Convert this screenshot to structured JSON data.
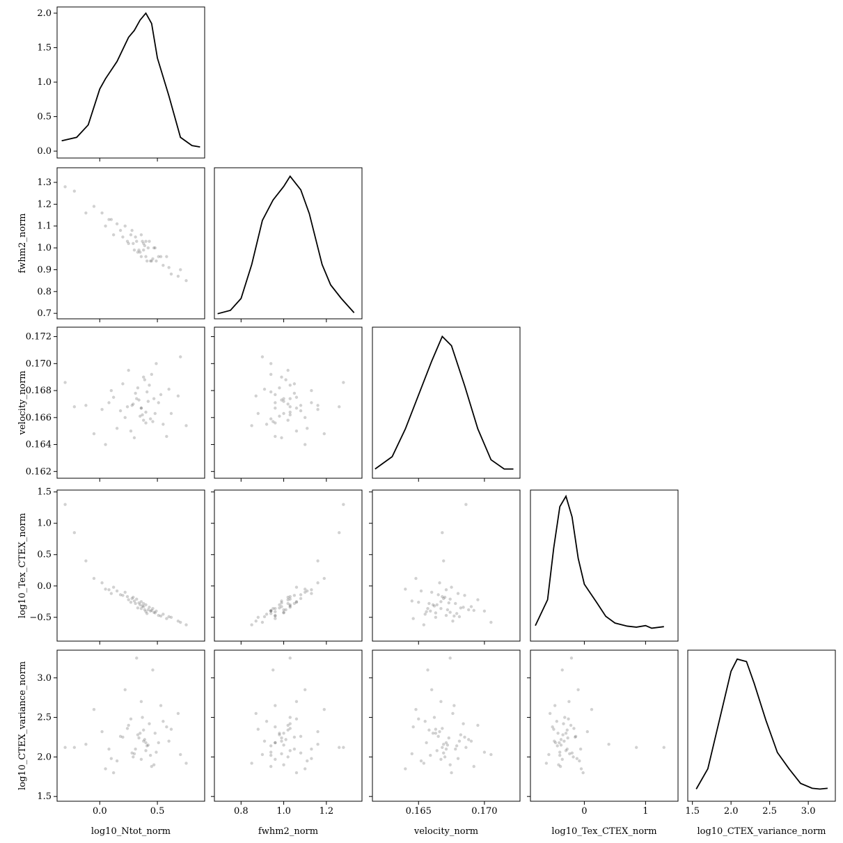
{
  "chart_data": {
    "type": "corner",
    "variables": [
      {
        "name": "log10_Ntot_norm",
        "lim": [
          -0.37,
          0.91
        ],
        "xticks": [
          {
            "value": 0,
            "label": "0.0"
          },
          0.5
        ],
        "samples": [
          0.42,
          0.35,
          0.1,
          0.55,
          0.28,
          0.38,
          -0.05,
          0.47,
          0.62,
          0.31,
          0.2,
          0.44,
          0.36,
          0.05,
          0.51,
          0.25,
          0.4,
          0.68,
          0.15,
          0.33,
          -0.22,
          0.46,
          0.39,
          0.29,
          0.58,
          0.12,
          0.37,
          0.41,
          0.02,
          0.49,
          0.22,
          0.34,
          0.75,
          0.43,
          -0.12,
          0.3,
          0.53,
          0.18,
          0.45,
          0.38,
          0.08,
          0.6,
          0.27,
          0.36,
          0.48,
          -0.3,
          0.32,
          0.4,
          0.7,
          0.24
        ],
        "density_x": [
          -0.33,
          -0.2,
          -0.1,
          0.0,
          0.05,
          0.15,
          0.25,
          0.3,
          0.35,
          0.4,
          0.45,
          0.5,
          0.6,
          0.7,
          0.8,
          0.87
        ],
        "density": [
          0.15,
          0.2,
          0.38,
          0.9,
          1.05,
          1.3,
          1.65,
          1.75,
          1.9,
          2.0,
          1.85,
          1.35,
          0.8,
          0.2,
          0.08,
          0.06
        ],
        "density_ylim": [
          -0.1,
          2.09
        ],
        "density_yticks": [
          {
            "value": 0,
            "label": "0.0"
          },
          0.5,
          {
            "value": 1,
            "label": "1.0"
          },
          1.5,
          {
            "value": 2,
            "label": "2.0"
          }
        ]
      },
      {
        "name": "fwhm2_norm",
        "lim": [
          0.675,
          1.367
        ],
        "xticks": [
          0.8,
          {
            "value": 1,
            "label": "1.0"
          },
          1.2
        ],
        "yticks": [
          0.7,
          0.8,
          0.9,
          {
            "value": 1,
            "label": "1.0"
          },
          1.1,
          1.2,
          1.3
        ],
        "samples": [
          1.0,
          0.98,
          1.13,
          0.92,
          1.08,
          0.99,
          1.19,
          1.0,
          0.88,
          1.05,
          1.05,
          0.94,
          1.06,
          1.1,
          0.96,
          1.02,
          1.03,
          0.87,
          1.11,
          0.98,
          1.26,
          0.95,
          1.01,
          1.02,
          0.96,
          1.06,
          1.03,
          0.94,
          1.16,
          0.94,
          1.1,
          0.99,
          0.85,
          1.03,
          1.16,
          0.99,
          0.96,
          1.08,
          0.94,
          1.02,
          1.13,
          0.91,
          1.06,
          0.96,
          1.0,
          1.28,
          1.03,
          0.96,
          0.9,
          1.03
        ],
        "density_x": [
          0.69,
          0.75,
          0.8,
          0.85,
          0.9,
          0.95,
          1.0,
          1.03,
          1.08,
          1.12,
          1.18,
          1.22,
          1.27,
          1.33
        ],
        "density": [
          0.05,
          0.15,
          0.5,
          1.5,
          2.8,
          3.4,
          3.8,
          4.1,
          3.7,
          3.0,
          1.5,
          0.9,
          0.5,
          0.08
        ],
        "density_ylim": [
          -0.1,
          4.35
        ]
      },
      {
        "name": "velocity_norm",
        "lim": [
          0.1615,
          0.1727
        ],
        "xticks": [
          0.165,
          {
            "value": 0.17,
            "label": "0.170"
          }
        ],
        "yticks": [
          0.162,
          0.164,
          0.166,
          0.168,
          {
            "value": 0.17,
            "label": "0.170"
          },
          0.172
        ],
        "samples": [
          0.1672,
          0.1661,
          0.168,
          0.1655,
          0.1669,
          0.169,
          0.1648,
          0.1674,
          0.1663,
          0.1678,
          0.1685,
          0.1659,
          0.1667,
          0.164,
          0.1671,
          0.1695,
          0.1664,
          0.1676,
          0.1652,
          0.1682,
          0.1668,
          0.1657,
          0.1688,
          0.167,
          0.1646,
          0.1675,
          0.1662,
          0.1679,
          0.1666,
          0.17,
          0.166,
          0.1673,
          0.1654,
          0.1684,
          0.1669,
          0.1645,
          0.1677,
          0.1665,
          0.1692,
          0.1658,
          0.1671,
          0.1681,
          0.165,
          0.1667,
          0.1663,
          0.1686,
          0.1674,
          0.1656,
          0.1705,
          0.1668
        ],
        "density_x": [
          0.1617,
          0.163,
          0.164,
          0.165,
          0.166,
          0.1668,
          0.1675,
          0.1685,
          0.1695,
          0.1705,
          0.1715,
          0.1722
        ],
        "density": [
          5,
          25,
          70,
          125,
          180,
          220,
          205,
          140,
          70,
          20,
          5,
          5
        ],
        "density_ylim": [
          -10,
          235
        ]
      },
      {
        "name": "log10_Tex_CTEX_norm",
        "lim": [
          -0.88,
          1.53
        ],
        "xticks": [
          0,
          1
        ],
        "yticks": [
          {
            "value": -0.5,
            "label": "−0.5"
          },
          {
            "value": 0,
            "label": "0.0"
          },
          0.5,
          {
            "value": 1,
            "label": "1.0"
          },
          1.5
        ],
        "samples": [
          -0.38,
          -0.3,
          -0.12,
          -0.45,
          -0.2,
          -0.33,
          0.12,
          -0.42,
          -0.5,
          -0.28,
          -0.15,
          -0.4,
          -0.25,
          -0.05,
          -0.47,
          -0.22,
          -0.3,
          -0.56,
          -0.08,
          -0.35,
          0.85,
          -0.36,
          -0.38,
          -0.18,
          -0.52,
          -0.02,
          -0.32,
          -0.44,
          0.05,
          -0.4,
          -0.1,
          -0.27,
          -0.62,
          -0.34,
          0.4,
          -0.24,
          -0.48,
          -0.14,
          -0.39,
          -0.28,
          -0.06,
          -0.49,
          -0.26,
          -0.36,
          -0.43,
          1.3,
          -0.21,
          -0.41,
          -0.58,
          -0.17
        ],
        "density_x": [
          -0.8,
          -0.6,
          -0.5,
          -0.4,
          -0.3,
          -0.2,
          -0.1,
          0.0,
          0.2,
          0.35,
          0.5,
          0.7,
          0.85,
          1.0,
          1.1,
          1.3
        ],
        "density": [
          0.1,
          0.6,
          1.6,
          2.4,
          2.6,
          2.2,
          1.4,
          0.9,
          0.55,
          0.28,
          0.15,
          0.09,
          0.07,
          0.1,
          0.05,
          0.08
        ],
        "density_ylim": [
          -0.2,
          2.72
        ]
      },
      {
        "name": "log10_CTEX_variance_norm",
        "lim": [
          1.44,
          3.35
        ],
        "xticks": [
          1.5,
          {
            "value": 2,
            "label": "2.0"
          },
          2.5,
          {
            "value": 3,
            "label": "3.0"
          }
        ],
        "yticks": [
          1.5,
          {
            "value": 2,
            "label": "2.0"
          },
          2.5,
          {
            "value": 3,
            "label": "3.0"
          }
        ],
        "samples": [
          2.15,
          2.3,
          1.98,
          2.45,
          2.05,
          2.2,
          2.6,
          1.9,
          2.35,
          2.1,
          2.25,
          2.02,
          2.7,
          1.85,
          2.18,
          2.4,
          2.08,
          2.55,
          1.95,
          2.28,
          2.12,
          3.1,
          2.22,
          2.0,
          2.38,
          1.8,
          2.5,
          2.14,
          2.32,
          2.06,
          2.85,
          2.24,
          1.92,
          2.42,
          2.16,
          2.04,
          2.65,
          2.26,
          1.88,
          2.34,
          2.1,
          2.2,
          2.48,
          1.97,
          2.3,
          2.12,
          3.25,
          2.18,
          2.03,
          2.36
        ],
        "density_x": [
          1.55,
          1.7,
          1.85,
          2.0,
          2.08,
          2.2,
          2.3,
          2.45,
          2.6,
          2.75,
          2.9,
          3.05,
          3.15,
          3.25
        ],
        "density": [
          0.05,
          0.3,
          0.9,
          1.5,
          1.65,
          1.62,
          1.35,
          0.9,
          0.5,
          0.3,
          0.12,
          0.06,
          0.05,
          0.06
        ],
        "density_ylim": [
          -0.1,
          1.76
        ]
      }
    ]
  }
}
